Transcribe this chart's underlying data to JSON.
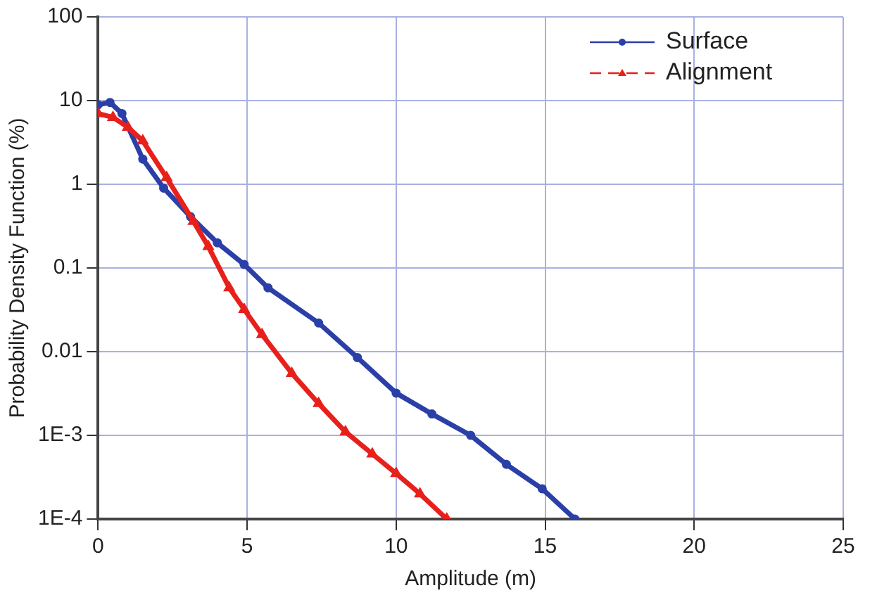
{
  "chart_data": {
    "type": "line",
    "xlabel": "Amplitude (m)",
    "ylabel": "Probability Density Function (%)",
    "log": "y",
    "grid": true,
    "legend": "top right",
    "xlim": [
      0,
      25
    ],
    "xticks": [
      0,
      5,
      10,
      15,
      20,
      25
    ],
    "ylim": [
      0.0001,
      100
    ],
    "yticks": [
      {
        "value": 0.0001,
        "label": "1E-4"
      },
      {
        "value": 0.001,
        "label": "1E-3"
      },
      0.01,
      0.1,
      1,
      10,
      100
    ],
    "series": [
      {
        "name": "Surface",
        "color": "#2b3fa8",
        "marker": "circle",
        "x": [
          0,
          0.4,
          0.8,
          1.5,
          2.2,
          3.1,
          4,
          4.9,
          5.7,
          7.4,
          8.7,
          10,
          11.2,
          12.5,
          13.7,
          14.9,
          16
        ],
        "values": [
          8.9,
          9.5,
          7,
          2,
          0.9,
          0.41,
          0.2,
          0.11,
          0.058,
          0.022,
          0.0085,
          0.0032,
          0.0018,
          0.001,
          0.00045,
          0.00023,
          0.0001
        ]
      },
      {
        "name": "Alignment",
        "color": "#e8201c",
        "marker": "triangle",
        "x": [
          0,
          0.5,
          1,
          1.5,
          2.3,
          3.2,
          3.7,
          4.4,
          4.9,
          5.5,
          6.5,
          7.4,
          8.3,
          9.2,
          10,
          10.8,
          11.7
        ],
        "values": [
          7,
          6.3,
          4.8,
          3.3,
          1.2,
          0.36,
          0.18,
          0.058,
          0.032,
          0.016,
          0.0055,
          0.0024,
          0.0011,
          0.0006,
          0.00035,
          0.0002,
          0.0001
        ]
      }
    ]
  }
}
